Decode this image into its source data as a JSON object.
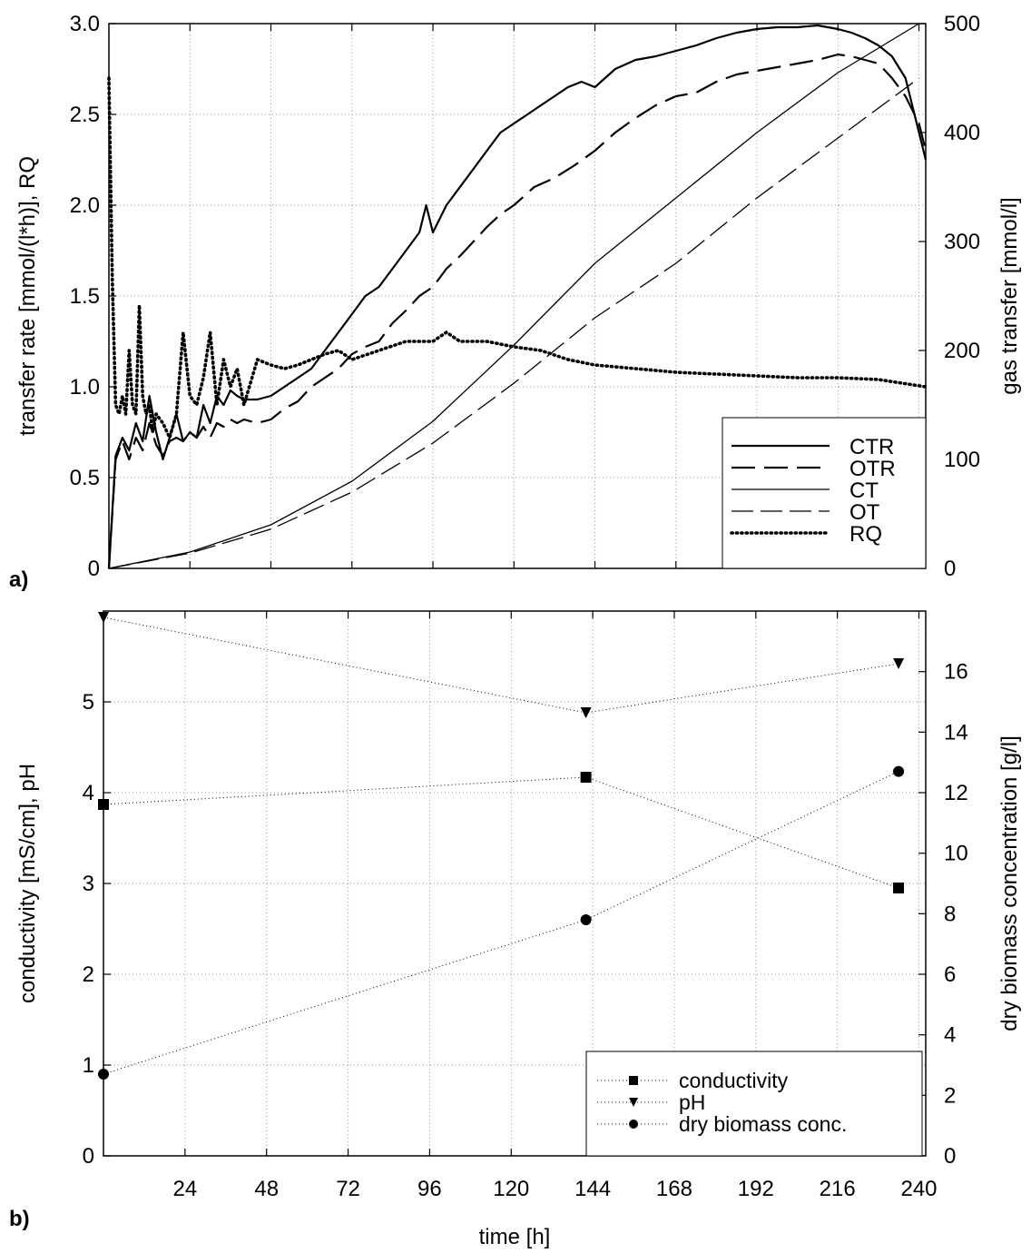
{
  "chart_data": [
    {
      "panel_label": "a)",
      "type": "line",
      "ylabel": "transfer rate [mmol/(l*h)], RQ",
      "y2label": "gas transfer [mmol/l]",
      "xlim": [
        0,
        242
      ],
      "ylim": [
        0,
        3.0
      ],
      "y2lim": [
        0,
        500
      ],
      "x_ticks": [
        24,
        48,
        72,
        96,
        120,
        144,
        168,
        192,
        216,
        240
      ],
      "y_ticks": [
        0,
        0.5,
        1.0,
        1.5,
        2.0,
        2.5,
        3.0
      ],
      "y_tick_labels": [
        "0",
        "0.5",
        "1.0",
        "1.5",
        "2.0",
        "2.5",
        "3.0"
      ],
      "y2_ticks": [
        0,
        100,
        200,
        300,
        400,
        500
      ],
      "grid": true,
      "legend_position": "bottom-right",
      "series": [
        {
          "name": "CTR",
          "axis": "left",
          "style": "solid-thick",
          "x": [
            0,
            2,
            4,
            6,
            8,
            10,
            12,
            14,
            16,
            18,
            20,
            22,
            24,
            26,
            28,
            30,
            32,
            34,
            36,
            38,
            40,
            44,
            48,
            52,
            56,
            60,
            64,
            68,
            72,
            76,
            80,
            84,
            88,
            92,
            94,
            96,
            100,
            104,
            108,
            112,
            116,
            120,
            124,
            128,
            132,
            136,
            140,
            144,
            150,
            156,
            162,
            168,
            174,
            180,
            186,
            192,
            198,
            204,
            210,
            216,
            220,
            224,
            228,
            232,
            236,
            240,
            242
          ],
          "y": [
            0,
            0.62,
            0.72,
            0.65,
            0.8,
            0.7,
            0.95,
            0.75,
            0.6,
            0.72,
            0.85,
            0.7,
            0.75,
            0.72,
            0.9,
            0.8,
            0.95,
            0.9,
            0.98,
            0.95,
            0.93,
            0.93,
            0.95,
            1.0,
            1.05,
            1.1,
            1.2,
            1.3,
            1.4,
            1.5,
            1.55,
            1.65,
            1.75,
            1.85,
            2.0,
            1.85,
            2.0,
            2.1,
            2.2,
            2.3,
            2.4,
            2.45,
            2.5,
            2.55,
            2.6,
            2.65,
            2.68,
            2.65,
            2.75,
            2.8,
            2.82,
            2.85,
            2.88,
            2.92,
            2.95,
            2.97,
            2.98,
            2.98,
            2.99,
            2.97,
            2.95,
            2.92,
            2.88,
            2.82,
            2.7,
            2.4,
            2.25
          ]
        },
        {
          "name": "OTR",
          "axis": "left",
          "style": "dashed-thick",
          "x": [
            0,
            2,
            4,
            6,
            8,
            10,
            12,
            14,
            16,
            18,
            20,
            22,
            24,
            26,
            28,
            30,
            32,
            34,
            36,
            38,
            40,
            44,
            48,
            52,
            56,
            60,
            64,
            68,
            72,
            76,
            80,
            84,
            88,
            92,
            96,
            100,
            104,
            108,
            112,
            116,
            120,
            126,
            132,
            138,
            144,
            150,
            156,
            162,
            168,
            174,
            180,
            186,
            192,
            198,
            204,
            210,
            216,
            220,
            224,
            228,
            232,
            236,
            240,
            242
          ],
          "y": [
            0,
            0.6,
            0.7,
            0.6,
            0.72,
            0.65,
            0.8,
            0.68,
            0.62,
            0.7,
            0.72,
            0.7,
            0.75,
            0.72,
            0.78,
            0.72,
            0.8,
            0.78,
            0.82,
            0.8,
            0.82,
            0.8,
            0.82,
            0.88,
            0.92,
            1.0,
            1.05,
            1.1,
            1.18,
            1.22,
            1.25,
            1.35,
            1.42,
            1.5,
            1.55,
            1.65,
            1.72,
            1.8,
            1.88,
            1.95,
            2.0,
            2.1,
            2.15,
            2.22,
            2.3,
            2.4,
            2.48,
            2.55,
            2.6,
            2.62,
            2.68,
            2.72,
            2.74,
            2.76,
            2.78,
            2.8,
            2.83,
            2.82,
            2.8,
            2.78,
            2.7,
            2.6,
            2.45,
            2.3
          ]
        },
        {
          "name": "CT",
          "axis": "right",
          "style": "solid-thin",
          "x": [
            0,
            24,
            48,
            72,
            96,
            120,
            144,
            168,
            192,
            216,
            240
          ],
          "y": [
            0,
            15,
            40,
            80,
            135,
            205,
            280,
            340,
            400,
            455,
            500
          ]
        },
        {
          "name": "OT",
          "axis": "right",
          "style": "dashed-thin",
          "x": [
            0,
            24,
            48,
            72,
            96,
            120,
            144,
            168,
            192,
            216,
            240
          ],
          "y": [
            0,
            14,
            36,
            70,
            115,
            170,
            230,
            280,
            340,
            395,
            450
          ]
        },
        {
          "name": "RQ",
          "axis": "left",
          "style": "dotted",
          "x": [
            0,
            1,
            2,
            3,
            4,
            5,
            6,
            7,
            8,
            9,
            10,
            11,
            12,
            13,
            14,
            16,
            18,
            20,
            22,
            24,
            26,
            28,
            30,
            32,
            34,
            36,
            38,
            40,
            44,
            48,
            52,
            56,
            60,
            64,
            68,
            72,
            80,
            88,
            96,
            100,
            104,
            112,
            120,
            128,
            136,
            144,
            156,
            168,
            180,
            192,
            204,
            216,
            228,
            242
          ],
          "y": [
            2.7,
            1.6,
            0.9,
            0.85,
            0.95,
            0.85,
            1.2,
            0.9,
            0.85,
            1.45,
            0.95,
            0.85,
            0.9,
            0.75,
            0.85,
            0.8,
            0.72,
            0.85,
            1.3,
            0.95,
            0.9,
            1.05,
            1.3,
            0.9,
            1.15,
            1.0,
            1.1,
            0.9,
            1.15,
            1.12,
            1.1,
            1.12,
            1.15,
            1.18,
            1.2,
            1.15,
            1.2,
            1.25,
            1.25,
            1.3,
            1.25,
            1.25,
            1.22,
            1.2,
            1.15,
            1.12,
            1.1,
            1.08,
            1.07,
            1.06,
            1.05,
            1.05,
            1.04,
            1.0
          ]
        }
      ]
    },
    {
      "panel_label": "b)",
      "type": "line",
      "xlabel": "time [h]",
      "ylabel": "conductivity [mS/cm], pH",
      "y2label": "dry biomass concentration [g/l]",
      "xlim": [
        0,
        242
      ],
      "ylim": [
        0,
        6.0
      ],
      "y2lim": [
        0,
        18.0
      ],
      "x_ticks": [
        24,
        48,
        72,
        96,
        120,
        144,
        168,
        192,
        216,
        240
      ],
      "y_ticks": [
        0,
        1,
        2,
        3,
        4,
        5
      ],
      "y2_ticks": [
        0,
        2,
        4,
        6,
        8,
        10,
        12,
        14,
        16
      ],
      "grid": true,
      "legend_position": "bottom-right",
      "series": [
        {
          "name": "conductivity",
          "axis": "left",
          "marker": "square",
          "x": [
            0,
            142,
            234
          ],
          "y": [
            3.87,
            4.17,
            2.95
          ]
        },
        {
          "name": "pH",
          "axis": "left",
          "marker": "triangle-down",
          "x": [
            0,
            142,
            234
          ],
          "y": [
            5.93,
            4.88,
            5.42
          ]
        },
        {
          "name": "dry biomass conc.",
          "axis": "right",
          "marker": "circle",
          "x": [
            0,
            142,
            234
          ],
          "y": [
            2.7,
            7.8,
            12.7
          ]
        }
      ]
    }
  ]
}
